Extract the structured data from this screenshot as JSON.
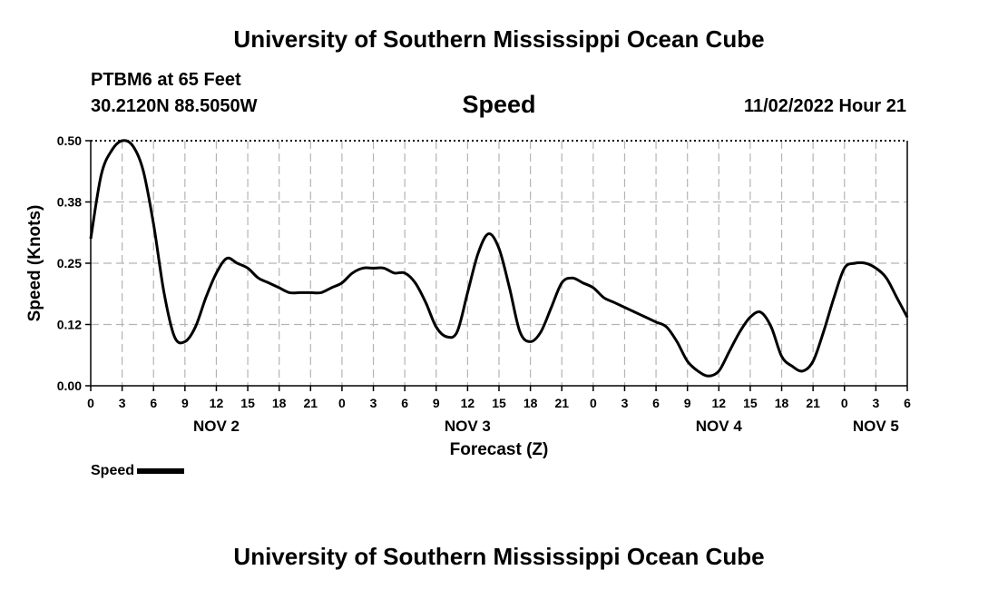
{
  "header": {
    "title": "University of Southern Mississippi Ocean Cube",
    "station": "PTBM6 at 65 Feet",
    "coordinates": "30.2120N  88.5050W",
    "parameter": "Speed",
    "datetime": "11/02/2022 Hour 21"
  },
  "footer": {
    "title": "University of Southern Mississippi Ocean Cube"
  },
  "legend": {
    "label": "Speed",
    "color": "#000000"
  },
  "chart_data": {
    "type": "line",
    "title": "Speed",
    "xlabel": "Forecast (Z)",
    "ylabel": "Speed (Knots)",
    "xlim": [
      0,
      78
    ],
    "ylim": [
      0,
      0.5
    ],
    "y_ticks": [
      0,
      0.125,
      0.25,
      0.375,
      0.5
    ],
    "y_tick_labels": [
      "0.00",
      "0.12",
      "0.25",
      "0.38",
      "0.50"
    ],
    "x_ticks": [
      0,
      3,
      6,
      9,
      12,
      15,
      18,
      21,
      24,
      27,
      30,
      33,
      36,
      39,
      42,
      45,
      48,
      51,
      54,
      57,
      60,
      63,
      66,
      69,
      72,
      75,
      78
    ],
    "x_tick_labels": [
      "0",
      "3",
      "6",
      "9",
      "12",
      "15",
      "18",
      "21",
      "0",
      "3",
      "6",
      "9",
      "12",
      "15",
      "18",
      "21",
      "0",
      "3",
      "6",
      "9",
      "12",
      "15",
      "18",
      "21",
      "0",
      "3",
      "6"
    ],
    "day_labels": [
      {
        "label": "NOV 2",
        "x": 12
      },
      {
        "label": "NOV 3",
        "x": 36
      },
      {
        "label": "NOV 4",
        "x": 60
      },
      {
        "label": "NOV 5",
        "x": 75
      }
    ],
    "grid": true,
    "series": [
      {
        "name": "Speed",
        "color": "#000000",
        "x": [
          0,
          1,
          2,
          3,
          4,
          5,
          6,
          7,
          8,
          9,
          10,
          11,
          12,
          13,
          14,
          15,
          16,
          17,
          18,
          19,
          20,
          21,
          22,
          23,
          24,
          25,
          26,
          27,
          28,
          29,
          30,
          31,
          32,
          33,
          34,
          35,
          36,
          37,
          38,
          39,
          40,
          41,
          42,
          43,
          44,
          45,
          46,
          47,
          48,
          49,
          50,
          51,
          52,
          53,
          54,
          55,
          56,
          57,
          58,
          59,
          60,
          61,
          62,
          63,
          64,
          65,
          66,
          67,
          68,
          69,
          70,
          71,
          72,
          73,
          74,
          75,
          76,
          77,
          78
        ],
        "values": [
          0.3,
          0.43,
          0.48,
          0.5,
          0.49,
          0.44,
          0.33,
          0.19,
          0.1,
          0.09,
          0.12,
          0.18,
          0.23,
          0.26,
          0.25,
          0.24,
          0.22,
          0.21,
          0.2,
          0.19,
          0.19,
          0.19,
          0.19,
          0.2,
          0.21,
          0.23,
          0.24,
          0.24,
          0.24,
          0.23,
          0.23,
          0.21,
          0.17,
          0.12,
          0.1,
          0.11,
          0.19,
          0.27,
          0.31,
          0.28,
          0.2,
          0.11,
          0.09,
          0.11,
          0.16,
          0.21,
          0.22,
          0.21,
          0.2,
          0.18,
          0.17,
          0.16,
          0.15,
          0.14,
          0.13,
          0.12,
          0.09,
          0.05,
          0.03,
          0.02,
          0.03,
          0.07,
          0.11,
          0.14,
          0.15,
          0.12,
          0.06,
          0.04,
          0.03,
          0.05,
          0.11,
          0.18,
          0.24,
          0.25,
          0.25,
          0.24,
          0.22,
          0.18,
          0.14
        ]
      }
    ]
  }
}
